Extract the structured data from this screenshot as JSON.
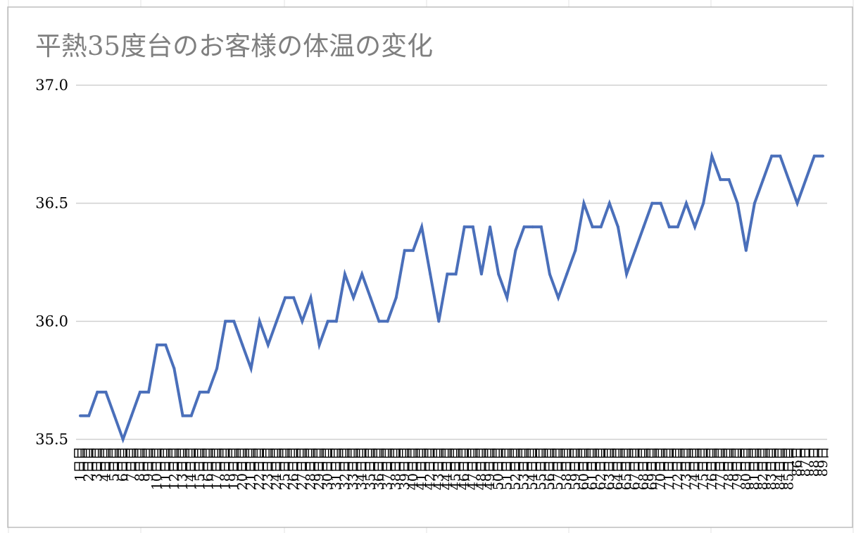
{
  "chart_data": {
    "type": "line",
    "title": "平熱35度台のお客様の体温の変化",
    "xlabel": "",
    "ylabel": "",
    "ylim": [
      35.5,
      37.0
    ],
    "yticks": [
      "35.5",
      "36.0",
      "36.5",
      "37.0"
    ],
    "grid": true,
    "legend": "none",
    "line_color": "#4a6fba",
    "categories": [
      "1日目",
      "2日目",
      "3日目",
      "4日目",
      "5日目",
      "6日目",
      "7日目",
      "8日目",
      "9日目",
      "10日目",
      "11日目",
      "12日目",
      "13日目",
      "14日目",
      "15日目",
      "16日目",
      "17日目",
      "18日目",
      "19日目",
      "20日目",
      "21日目",
      "22日目",
      "23日目",
      "24日目",
      "25日目",
      "26日目",
      "27日目",
      "28日目",
      "29日目",
      "30日目",
      "31日目",
      "32日目",
      "33日目",
      "34日目",
      "35日目",
      "36日目",
      "37日目",
      "38日目",
      "39日目",
      "40日目",
      "41日目",
      "42日目",
      "43日目",
      "44日目",
      "45日目",
      "46日目",
      "47日目",
      "48日目",
      "49日目",
      "50日目",
      "51日目",
      "52日目",
      "53日目",
      "54日目",
      "55日目",
      "56日目",
      "57日目",
      "58日目",
      "59日目",
      "60日目",
      "61日目",
      "62日目",
      "63日目",
      "64日目",
      "65日目",
      "67日目",
      "68日目",
      "69日目",
      "70日目",
      "71日目",
      "72日目",
      "73日目",
      "74日目",
      "75日目",
      "76日目",
      "77日目",
      "78日目",
      "79日目",
      "80日目",
      "81日目",
      "82日目",
      "83日目",
      "84日目",
      "85日目",
      "86日",
      "87日",
      "88日",
      "89日"
    ],
    "series": [
      {
        "values": [
          35.6,
          35.6,
          35.7,
          35.7,
          35.6,
          35.5,
          35.6,
          35.7,
          35.7,
          35.9,
          35.9,
          35.8,
          35.6,
          35.6,
          35.7,
          35.7,
          35.8,
          36.0,
          36.0,
          35.9,
          35.8,
          36.0,
          35.9,
          36.0,
          36.1,
          36.1,
          36.0,
          36.1,
          35.9,
          36.0,
          36.0,
          36.2,
          36.1,
          36.2,
          36.1,
          36.0,
          36.0,
          36.1,
          36.3,
          36.3,
          36.4,
          36.2,
          36.0,
          36.2,
          36.2,
          36.4,
          36.4,
          36.2,
          36.4,
          36.2,
          36.1,
          36.3,
          36.4,
          36.4,
          36.4,
          36.2,
          36.1,
          36.2,
          36.3,
          36.5,
          36.4,
          36.4,
          36.5,
          36.4,
          36.2,
          36.3,
          36.4,
          36.5,
          36.5,
          36.4,
          36.4,
          36.5,
          36.4,
          36.5,
          36.7,
          36.6,
          36.6,
          36.5,
          36.3,
          36.5,
          36.6,
          36.7,
          36.7,
          36.6,
          36.5,
          36.6,
          36.7,
          36.7
        ]
      }
    ]
  }
}
